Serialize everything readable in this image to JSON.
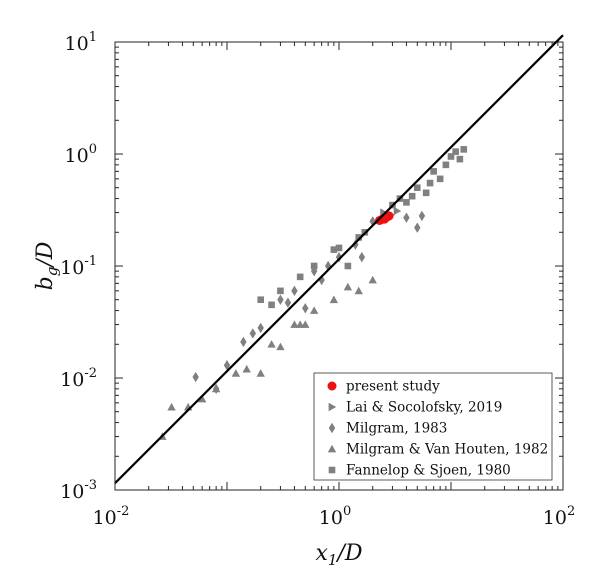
{
  "chart_data": {
    "type": "scatter",
    "title": "",
    "xlabel": {
      "base": "x",
      "sub": "1",
      "suffix": "/D"
    },
    "ylabel": {
      "base": "b",
      "sub": "g",
      "suffix": "/D"
    },
    "x_scale": "log",
    "y_scale": "log",
    "xlim": [
      0.01,
      100
    ],
    "ylim": [
      0.001,
      10
    ],
    "x_ticks": [
      {
        "value": 0.01,
        "base": "10",
        "exp": "-2"
      },
      {
        "value": 1,
        "base": "10",
        "exp": "0"
      },
      {
        "value": 100,
        "base": "10",
        "exp": "2"
      }
    ],
    "y_ticks": [
      {
        "value": 0.001,
        "base": "10",
        "exp": "-3"
      },
      {
        "value": 0.01,
        "base": "10",
        "exp": "-2"
      },
      {
        "value": 0.1,
        "base": "10",
        "exp": "-1"
      },
      {
        "value": 1,
        "base": "10",
        "exp": "0"
      },
      {
        "value": 10,
        "base": "10",
        "exp": "1"
      }
    ],
    "grid": false,
    "legend_position": "bottom-right",
    "fit_line": {
      "points": [
        [
          0.01,
          0.00115
        ],
        [
          100,
          11.5
        ]
      ],
      "color": "#000000"
    },
    "series": [
      {
        "name": "present study",
        "marker": "circle",
        "color": "#ee1111",
        "points": [
          [
            2.3,
            0.255
          ],
          [
            2.4,
            0.26
          ],
          [
            2.5,
            0.265
          ],
          [
            2.6,
            0.27
          ],
          [
            2.7,
            0.275
          ],
          [
            2.8,
            0.28
          ],
          [
            2.55,
            0.262
          ],
          [
            2.65,
            0.272
          ]
        ]
      },
      {
        "name": "Lai & Socolofsky, 2019",
        "marker": "triangle-right",
        "color": "#808080",
        "points": [
          [
            2.5,
            0.3
          ],
          [
            2.9,
            0.285
          ],
          [
            3.3,
            0.31
          ]
        ]
      },
      {
        "name": "Milgram, 1983",
        "marker": "diamond",
        "color": "#808080",
        "points": [
          [
            0.0525,
            0.0102
          ],
          [
            0.08,
            0.008
          ],
          [
            0.1,
            0.013
          ],
          [
            0.14,
            0.021
          ],
          [
            0.17,
            0.025
          ],
          [
            0.2,
            0.028
          ],
          [
            0.3,
            0.05
          ],
          [
            0.35,
            0.047
          ],
          [
            0.4,
            0.06
          ],
          [
            0.5,
            0.042
          ],
          [
            0.6,
            0.09
          ],
          [
            0.7,
            0.075
          ],
          [
            0.8,
            0.1
          ],
          [
            1.0,
            0.12
          ],
          [
            1.4,
            0.155
          ],
          [
            1.6,
            0.12
          ],
          [
            2.0,
            0.25
          ],
          [
            4.0,
            0.27
          ],
          [
            5.0,
            0.22
          ],
          [
            5.5,
            0.28
          ]
        ]
      },
      {
        "name": "Milgram & Van Houten, 1982",
        "marker": "triangle-up",
        "color": "#808080",
        "points": [
          [
            0.0265,
            0.003
          ],
          [
            0.032,
            0.0055
          ],
          [
            0.045,
            0.0055
          ],
          [
            0.06,
            0.0065
          ],
          [
            0.08,
            0.008
          ],
          [
            0.12,
            0.011
          ],
          [
            0.15,
            0.012
          ],
          [
            0.2,
            0.011
          ],
          [
            0.25,
            0.02
          ],
          [
            0.3,
            0.019
          ],
          [
            0.4,
            0.03
          ],
          [
            0.45,
            0.03
          ],
          [
            0.5,
            0.03
          ],
          [
            0.6,
            0.04
          ],
          [
            0.9,
            0.05
          ],
          [
            1.2,
            0.065
          ],
          [
            1.5,
            0.06
          ],
          [
            2.0,
            0.075
          ]
        ]
      },
      {
        "name": "Fannelop & Sjoen, 1980",
        "marker": "square",
        "color": "#808080",
        "points": [
          [
            0.2,
            0.05
          ],
          [
            0.25,
            0.045
          ],
          [
            0.3,
            0.06
          ],
          [
            0.45,
            0.08
          ],
          [
            0.6,
            0.1
          ],
          [
            0.9,
            0.14
          ],
          [
            1.0,
            0.145
          ],
          [
            1.2,
            0.1
          ],
          [
            1.5,
            0.18
          ],
          [
            1.7,
            0.2
          ],
          [
            3.0,
            0.35
          ],
          [
            3.5,
            0.4
          ],
          [
            4.0,
            0.37
          ],
          [
            5.0,
            0.5
          ],
          [
            6.0,
            0.45
          ],
          [
            7.0,
            0.7
          ],
          [
            8.0,
            0.6
          ],
          [
            9.0,
            0.8
          ],
          [
            10.0,
            0.95
          ],
          [
            11.0,
            1.05
          ],
          [
            12.0,
            0.9
          ],
          [
            13.0,
            1.1
          ],
          [
            6.5,
            0.55
          ],
          [
            4.5,
            0.42
          ]
        ]
      }
    ]
  }
}
